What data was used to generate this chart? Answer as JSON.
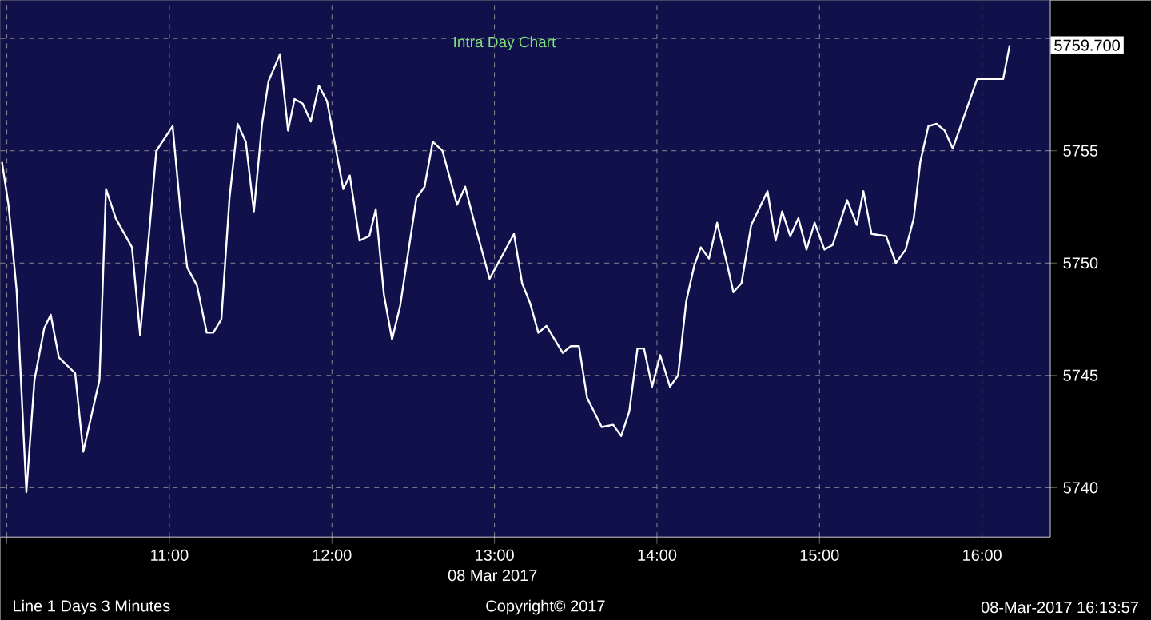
{
  "chart_data": {
    "type": "line",
    "title": "Intra Day Chart",
    "xlabel": "08 Mar 2017",
    "annotations": [
      {
        "text": "5759.700",
        "x": 16.17,
        "y": 5759.7
      },
      "Line 1 Days 3 Minutes",
      "Copyright© 2017",
      "08-Mar-2017 16:13:57"
    ],
    "xlim": [
      9.96,
      16.42
    ],
    "ylim": [
      5737.8,
      5761.7
    ],
    "xticks": [
      {
        "value": 10,
        "label": null
      },
      {
        "value": 11,
        "label": "11:00"
      },
      {
        "value": 12,
        "label": "12:00"
      },
      {
        "value": 13,
        "label": "13:00"
      },
      {
        "value": 14,
        "label": "14:00"
      },
      {
        "value": 15,
        "label": "15:00"
      },
      {
        "value": 16,
        "label": "16:00"
      }
    ],
    "yticks": [
      5740,
      5745,
      5750,
      5755,
      {
        "value": 5760,
        "label": null
      }
    ],
    "grid": true,
    "series": [
      {
        "color": "#ffffff",
        "line_style": "solid",
        "x": [
          9.97,
          10.01,
          10.06,
          10.12,
          10.17,
          10.23,
          10.27,
          10.32,
          10.42,
          10.47,
          10.57,
          10.61,
          10.67,
          10.77,
          10.82,
          10.92,
          11.02,
          11.07,
          11.11,
          11.17,
          11.23,
          11.27,
          11.32,
          11.37,
          11.42,
          11.47,
          11.52,
          11.57,
          11.61,
          11.68,
          11.73,
          11.77,
          11.82,
          11.87,
          11.92,
          11.97,
          12.07,
          12.11,
          12.17,
          12.23,
          12.27,
          12.32,
          12.37,
          12.42,
          12.52,
          12.57,
          12.62,
          12.68,
          12.77,
          12.82,
          12.88,
          12.97,
          13.06,
          13.12,
          13.17,
          13.22,
          13.27,
          13.32,
          13.42,
          13.47,
          13.52,
          13.57,
          13.66,
          13.73,
          13.78,
          13.83,
          13.88,
          13.92,
          13.97,
          14.02,
          14.08,
          14.13,
          14.18,
          14.23,
          14.27,
          14.32,
          14.37,
          14.43,
          14.47,
          14.52,
          14.58,
          14.68,
          14.73,
          14.77,
          14.82,
          14.87,
          14.92,
          14.97,
          15.03,
          15.08,
          15.17,
          15.23,
          15.27,
          15.32,
          15.41,
          15.47,
          15.53,
          15.58,
          15.62,
          15.67,
          15.72,
          15.77,
          15.82,
          15.97,
          16.13,
          16.17
        ],
        "values": [
          5754.5,
          5752.6,
          5748.8,
          5739.8,
          5744.8,
          5747.1,
          5747.7,
          5745.8,
          5745.1,
          5741.6,
          5744.8,
          5753.3,
          5752.0,
          5750.7,
          5746.8,
          5755.0,
          5756.1,
          5752.2,
          5749.8,
          5749.0,
          5746.9,
          5746.9,
          5747.5,
          5752.9,
          5756.2,
          5755.4,
          5752.3,
          5756.2,
          5758.1,
          5759.3,
          5755.9,
          5757.3,
          5757.1,
          5756.3,
          5757.9,
          5757.2,
          5753.3,
          5753.9,
          5751.0,
          5751.2,
          5752.4,
          5748.6,
          5746.6,
          5748.1,
          5752.9,
          5753.4,
          5755.4,
          5755.0,
          5752.6,
          5753.4,
          5751.7,
          5749.3,
          5750.5,
          5751.3,
          5749.1,
          5748.2,
          5746.9,
          5747.2,
          5746.0,
          5746.3,
          5746.3,
          5744.0,
          5742.7,
          5742.8,
          5742.3,
          5743.4,
          5746.2,
          5746.2,
          5744.5,
          5745.9,
          5744.5,
          5745.0,
          5748.3,
          5749.9,
          5750.7,
          5750.2,
          5751.8,
          5750.0,
          5748.7,
          5749.1,
          5751.7,
          5753.2,
          5751.0,
          5752.3,
          5751.2,
          5752.0,
          5750.6,
          5751.8,
          5750.6,
          5750.8,
          5752.8,
          5751.7,
          5753.2,
          5751.3,
          5751.2,
          5750.0,
          5750.6,
          5752.0,
          5754.5,
          5756.1,
          5756.2,
          5755.9,
          5755.1,
          5758.2,
          5758.2,
          5759.7
        ]
      }
    ]
  }
}
